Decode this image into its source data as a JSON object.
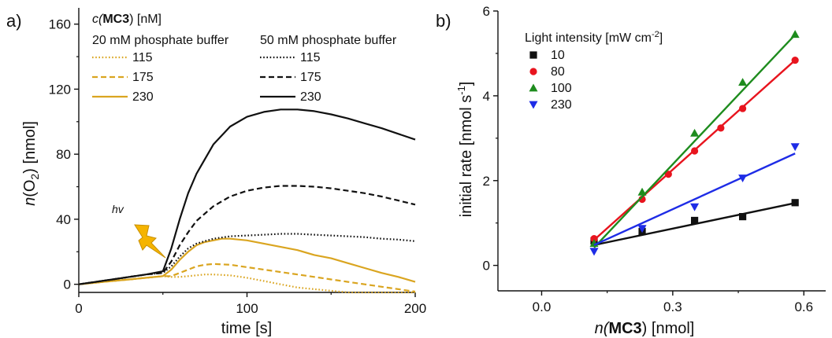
{
  "colors": {
    "gold": "#DAA520",
    "black": "#111111",
    "red": "#E8141E",
    "green": "#1E8C1E",
    "blue": "#1E2CE6"
  },
  "chart_data": [
    {
      "panel_label": "a)",
      "type": "line",
      "xlabel": "time [s]",
      "ylabel_prefix": "n",
      "ylabel_var": "(O",
      "ylabel_sub": "2",
      "ylabel_suffix": ") [nmol]",
      "xlim": [
        0,
        200
      ],
      "ylim": [
        -5,
        170
      ],
      "xticks": [
        0,
        100,
        200
      ],
      "yticks": [
        0,
        40,
        80,
        120,
        160
      ],
      "grid": false,
      "legend_title_prefix": "c(",
      "legend_title_bold": "MC3",
      "legend_title_suffix": ") [nM]",
      "legend_group_1": "20 mM phosphate buffer",
      "legend_group_2": "50 mM phosphate buffer",
      "annotation": "hv",
      "annotation_icon": "lightning-bolt-icon",
      "series": [
        {
          "name": "115",
          "group": 1,
          "color": "#DAA520",
          "dash": "dotted",
          "x": [
            0,
            10,
            20,
            30,
            40,
            50,
            55,
            60,
            65,
            70,
            75,
            80,
            90,
            100,
            110,
            120,
            130,
            140,
            150,
            160,
            170,
            180,
            190,
            200
          ],
          "y": [
            0,
            1,
            2,
            3,
            4,
            5,
            4.5,
            4.5,
            5,
            5.5,
            6,
            6,
            5.5,
            4,
            2,
            0,
            -2,
            -3,
            -4,
            -5,
            -5,
            -5,
            -5,
            -5
          ]
        },
        {
          "name": "175",
          "group": 1,
          "color": "#DAA520",
          "dash": "dashed",
          "x": [
            0,
            10,
            20,
            30,
            40,
            50,
            55,
            60,
            65,
            70,
            75,
            80,
            90,
            100,
            110,
            120,
            130,
            140,
            150,
            160,
            170,
            180,
            190,
            200
          ],
          "y": [
            0,
            1,
            2,
            3,
            4,
            5,
            5,
            7,
            9,
            11,
            12,
            12.5,
            12,
            10.5,
            9,
            7.5,
            6,
            4.5,
            3,
            1.5,
            0,
            -1.5,
            -3,
            -4.5
          ]
        },
        {
          "name": "230",
          "group": 1,
          "color": "#DAA520",
          "dash": "solid",
          "x": [
            0,
            10,
            20,
            30,
            40,
            50,
            55,
            60,
            65,
            70,
            75,
            80,
            85,
            90,
            100,
            110,
            120,
            130,
            140,
            150,
            160,
            170,
            180,
            190,
            200
          ],
          "y": [
            0,
            1,
            2,
            3,
            4,
            5,
            9,
            15,
            20,
            24,
            26,
            27,
            28,
            28,
            27,
            25,
            23,
            21,
            18,
            16,
            13,
            10,
            7,
            4.5,
            1.5
          ]
        },
        {
          "name": "115",
          "group": 2,
          "color": "#111111",
          "dash": "dotted",
          "x": [
            0,
            10,
            20,
            30,
            40,
            50,
            55,
            60,
            65,
            70,
            80,
            90,
            100,
            110,
            120,
            130,
            140,
            150,
            160,
            170,
            180,
            190,
            200
          ],
          "y": [
            0,
            1.5,
            3,
            4.5,
            6,
            7,
            11,
            17,
            22,
            25,
            28,
            29.5,
            30,
            30.5,
            31,
            31,
            30.5,
            30,
            29.5,
            29,
            28,
            27.5,
            26.5
          ]
        },
        {
          "name": "175",
          "group": 2,
          "color": "#111111",
          "dash": "dashed",
          "x": [
            0,
            10,
            20,
            30,
            40,
            50,
            55,
            60,
            65,
            70,
            80,
            90,
            100,
            110,
            120,
            130,
            140,
            150,
            160,
            170,
            180,
            190,
            200
          ],
          "y": [
            0,
            1.5,
            3,
            4.5,
            6,
            7,
            14,
            24,
            32,
            39,
            48,
            54,
            57.5,
            59.5,
            60.5,
            60.5,
            60,
            59,
            57.5,
            56,
            54,
            51.5,
            49
          ]
        },
        {
          "name": "230",
          "group": 2,
          "color": "#111111",
          "dash": "solid",
          "x": [
            0,
            10,
            20,
            30,
            40,
            50,
            55,
            60,
            65,
            70,
            80,
            90,
            100,
            110,
            120,
            130,
            140,
            150,
            160,
            170,
            180,
            190,
            200
          ],
          "y": [
            0,
            1.5,
            3,
            4.5,
            6,
            8,
            22,
            40,
            56,
            68,
            86,
            97,
            103,
            106,
            107.5,
            107.5,
            106.5,
            104.5,
            102,
            99,
            96,
            92.5,
            89
          ]
        }
      ]
    },
    {
      "panel_label": "b)",
      "type": "scatter",
      "xlabel_prefix": "n(",
      "xlabel_bold": "MC3",
      "xlabel_suffix": ") [nmol]",
      "ylabel": "initial rate [nmol s",
      "ylabel_sup": "-1",
      "ylabel_end": "]",
      "xlim": [
        -0.1,
        0.65
      ],
      "ylim": [
        -0.6,
        6
      ],
      "xticks": [
        "0.0",
        "0.3",
        "0.6"
      ],
      "yticks": [
        "0",
        "2",
        "4",
        "6"
      ],
      "grid": false,
      "legend_title_main": "Light intensity [mW cm",
      "legend_title_sup": "-2",
      "legend_title_end": "]",
      "series": [
        {
          "name": "10",
          "color": "#111111",
          "marker": "square",
          "x": [
            0.12,
            0.23,
            0.35,
            0.46,
            0.58
          ],
          "y": [
            0.58,
            0.8,
            1.06,
            1.15,
            1.48
          ],
          "fit": [
            [
              0.12,
              0.48
            ],
            [
              0.58,
              1.47
            ]
          ]
        },
        {
          "name": "80",
          "color": "#E8141E",
          "marker": "circle",
          "x": [
            0.12,
            0.23,
            0.29,
            0.35,
            0.41,
            0.46,
            0.58
          ],
          "y": [
            0.63,
            1.56,
            2.15,
            2.7,
            3.24,
            3.7,
            4.84
          ],
          "fit": [
            [
              0.12,
              0.6
            ],
            [
              0.58,
              4.84
            ]
          ]
        },
        {
          "name": "100",
          "color": "#1E8C1E",
          "marker": "triangle-up",
          "x": [
            0.12,
            0.23,
            0.35,
            0.46,
            0.58
          ],
          "y": [
            0.52,
            1.73,
            3.12,
            4.32,
            5.45
          ],
          "fit": [
            [
              0.12,
              0.42
            ],
            [
              0.58,
              5.44
            ]
          ]
        },
        {
          "name": "230",
          "color": "#1E2CE6",
          "marker": "triangle-down",
          "x": [
            0.12,
            0.23,
            0.35,
            0.46,
            0.58
          ],
          "y": [
            0.33,
            0.87,
            1.38,
            2.06,
            2.8
          ],
          "fit": [
            [
              0.12,
              0.48
            ],
            [
              0.58,
              2.64
            ]
          ]
        }
      ]
    }
  ]
}
